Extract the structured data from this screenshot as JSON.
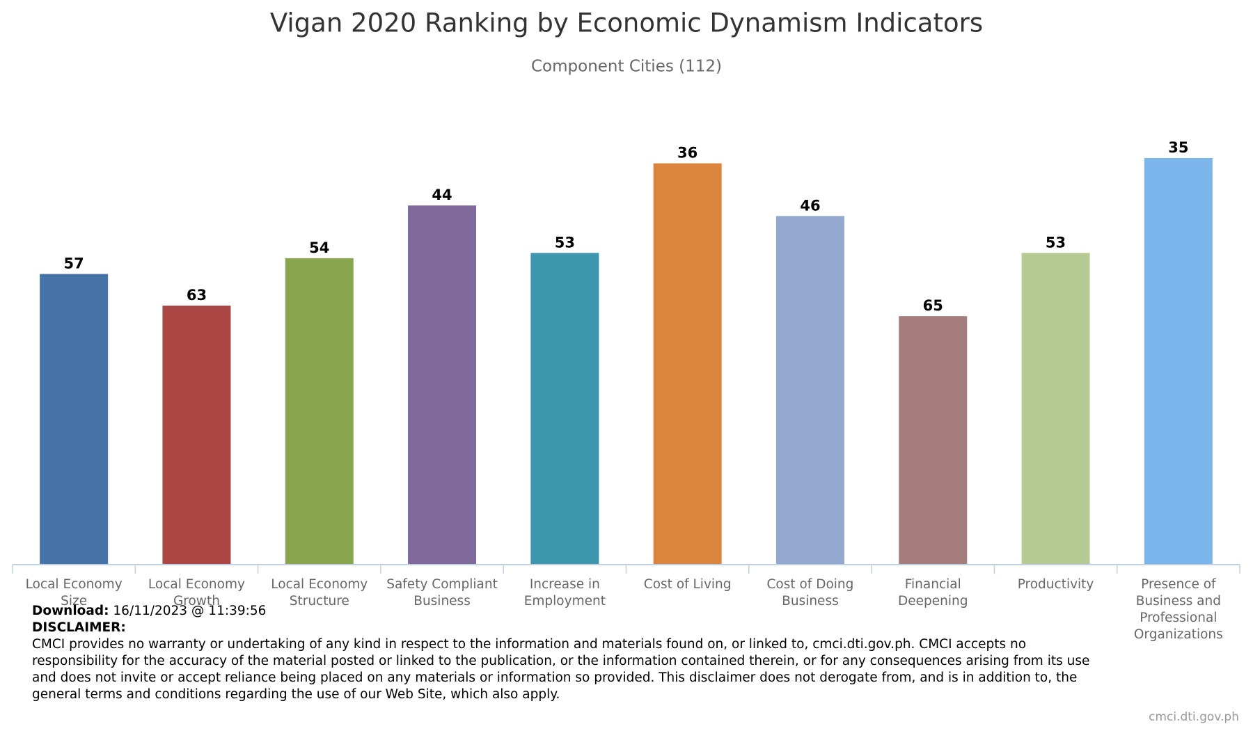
{
  "chart_data": {
    "type": "bar",
    "title": "Vigan 2020 Ranking by Economic Dynamism Indicators",
    "subtitle": "Component Cities (112)",
    "categories": [
      "Local Economy Size",
      "Local Economy Growth",
      "Local Economy Structure",
      "Safety Compliant Business",
      "Increase in Employment",
      "Cost of Living",
      "Cost of Doing Business",
      "Financial Deepening",
      "Productivity",
      "Presence of Business and Professional Organizations"
    ],
    "values": [
      57,
      63,
      54,
      44,
      53,
      36,
      46,
      65,
      53,
      35
    ],
    "colors": [
      "#4572a7",
      "#aa4643",
      "#89a54e",
      "#80699b",
      "#3d96ae",
      "#db843d",
      "#92a8cd",
      "#a47d7c",
      "#b5ca92",
      "#7cb5ec"
    ],
    "ylim": [
      112,
      0
    ]
  },
  "footer": {
    "download_label": "Download:",
    "download_time": "16/11/2023 @ 11:39:56",
    "disclaimer_label": "DISCLAIMER:",
    "disclaimer": "CMCI provides no warranty or undertaking of any kind in respect to the information and materials found on, or linked to, cmci.dti.gov.ph. CMCI accepts no responsibility for the accuracy of the material posted or linked to the publication, or the information contained therein, or for any consequences arising from its use and does not invite or accept reliance being placed on any materials or information so provided. This disclaimer does not derogate from, and is in addition to, the general terms and conditions regarding the use of our Web Site, which also apply.",
    "source": "cmci.dti.gov.ph"
  }
}
